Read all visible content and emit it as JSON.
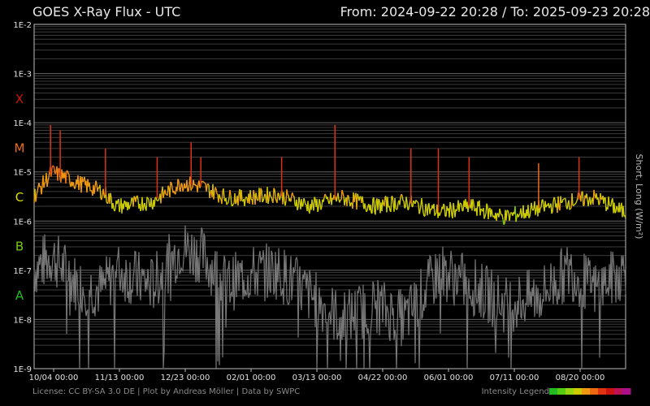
{
  "chart_data": {
    "type": "line",
    "title": "GOES X-Ray Flux - UTC",
    "range_label": "From: 2024-09-22 20:28  /  To: 2025-09-23 20:28",
    "y_axis_label": "Short, Long (W/m²)",
    "y_scale": "log",
    "ylim": [
      1e-09,
      0.01
    ],
    "y_ticks": [
      "1E-2",
      "1E-3",
      "1E-4",
      "1E-5",
      "1E-6",
      "1E-7",
      "1E-8",
      "1E-9"
    ],
    "flare_classes": [
      {
        "label": "X",
        "color": "#cc1111"
      },
      {
        "label": "M",
        "color": "#ee6a11"
      },
      {
        "label": "C",
        "color": "#dddd00"
      },
      {
        "label": "B",
        "color": "#77cc11"
      },
      {
        "label": "A",
        "color": "#22bb22"
      }
    ],
    "x_ticks": [
      "10/04 00:00",
      "11/13 00:00",
      "12/23 00:00",
      "02/01 00:00",
      "03/13 00:00",
      "04/22 00:00",
      "06/01 00:00",
      "07/11 00:00",
      "08/20 00:00"
    ],
    "xlim": [
      "2024-09-22 20:28",
      "2025-09-23 20:28"
    ],
    "grid": true,
    "series": [
      {
        "name": "Long",
        "color": "#dddd00",
        "x": [
          "2024-09-22",
          "2024-10-04",
          "2024-10-20",
          "2024-11-04",
          "2024-11-13",
          "2024-12-05",
          "2024-12-23",
          "2025-01-05",
          "2025-01-20",
          "2025-02-01",
          "2025-02-20",
          "2025-03-13",
          "2025-04-01",
          "2025-04-22",
          "2025-05-10",
          "2025-06-01",
          "2025-06-20",
          "2025-07-11",
          "2025-08-01",
          "2025-08-20",
          "2025-09-05",
          "2025-09-23"
        ],
        "values": [
          3e-06,
          1e-05,
          6e-06,
          4e-06,
          2e-06,
          2.5e-06,
          6e-06,
          5e-06,
          3e-06,
          3e-06,
          3.5e-06,
          2e-06,
          3e-06,
          2e-06,
          2.5e-06,
          1.5e-06,
          2e-06,
          1.2e-06,
          1.8e-06,
          2.5e-06,
          3e-06,
          1.5e-06
        ]
      },
      {
        "name": "Short",
        "color": "#777777",
        "x": [
          "2024-09-22",
          "2024-10-04",
          "2024-10-20",
          "2024-11-04",
          "2024-11-13",
          "2024-12-05",
          "2024-12-23",
          "2025-01-05",
          "2025-01-20",
          "2025-02-01",
          "2025-02-20",
          "2025-03-13",
          "2025-04-01",
          "2025-04-22",
          "2025-05-10",
          "2025-06-01",
          "2025-06-20",
          "2025-07-11",
          "2025-08-01",
          "2025-08-20",
          "2025-09-05",
          "2025-09-23"
        ],
        "values": [
          1e-07,
          2e-07,
          5e-08,
          4e-08,
          1e-07,
          5e-08,
          3e-07,
          2e-07,
          5e-08,
          8e-08,
          1e-07,
          3e-08,
          1e-08,
          2e-08,
          1e-08,
          1e-07,
          5e-08,
          2e-08,
          3e-08,
          1e-07,
          4e-08,
          1e-07
        ]
      }
    ],
    "peaks": [
      {
        "x": "2024-10-03",
        "value": 9e-05
      },
      {
        "x": "2024-10-09",
        "value": 7e-05
      },
      {
        "x": "2024-11-06",
        "value": 3e-05
      },
      {
        "x": "2024-12-08",
        "value": 2e-05
      },
      {
        "x": "2024-12-29",
        "value": 4e-05
      },
      {
        "x": "2025-01-04",
        "value": 2e-05
      },
      {
        "x": "2025-02-23",
        "value": 2e-05
      },
      {
        "x": "2025-03-28",
        "value": 9e-05
      },
      {
        "x": "2025-05-14",
        "value": 3e-05
      },
      {
        "x": "2025-05-31",
        "value": 3e-05
      },
      {
        "x": "2025-06-19",
        "value": 2e-05
      },
      {
        "x": "2025-08-01",
        "value": 1.5e-05
      },
      {
        "x": "2025-08-26",
        "value": 2e-05
      }
    ]
  },
  "footer": {
    "license": "License: CC BY-SA 3.0 DE | Plot by Andreas Möller | Data by SWPC",
    "legend_label": "Intensity Legend",
    "legend_colors": [
      "#22bb22",
      "#55cc11",
      "#99d411",
      "#cccc00",
      "#ee9911",
      "#ee6a11",
      "#dd3311",
      "#cc1111",
      "#bb1155",
      "#aa1188"
    ]
  }
}
